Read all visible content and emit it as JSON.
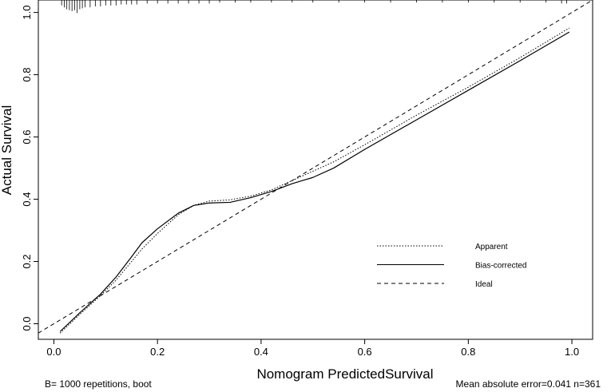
{
  "chart_data": {
    "type": "line",
    "xlabel": "Nomogram PredictedSurvival",
    "ylabel": "Actual Survival",
    "xlim": [
      -0.03,
      1.04
    ],
    "ylim": [
      -0.05,
      1.04
    ],
    "x_ticks": [
      "0.0",
      "0.2",
      "0.4",
      "0.6",
      "0.8",
      "1.0"
    ],
    "y_ticks": [
      "0.0",
      "0.2",
      "0.4",
      "0.6",
      "0.8",
      "1.0"
    ],
    "x_tick_values": [
      0,
      0.2,
      0.4,
      0.6,
      0.8,
      1.0
    ],
    "y_tick_values": [
      0,
      0.2,
      0.4,
      0.6,
      0.8,
      1.0
    ],
    "series": [
      {
        "name": "Apparent",
        "style": "dotted",
        "x": [
          0.012,
          0.05,
          0.09,
          0.12,
          0.15,
          0.17,
          0.2,
          0.24,
          0.27,
          0.3,
          0.34,
          0.38,
          0.42,
          0.46,
          0.5,
          0.54,
          0.6,
          0.7,
          0.8,
          0.9,
          0.995
        ],
        "y": [
          -0.03,
          0.03,
          0.09,
          0.14,
          0.2,
          0.24,
          0.29,
          0.35,
          0.38,
          0.394,
          0.398,
          0.41,
          0.43,
          0.46,
          0.49,
          0.52,
          0.575,
          0.67,
          0.76,
          0.855,
          0.95
        ]
      },
      {
        "name": "Bias-corrected",
        "style": "solid",
        "x": [
          0.012,
          0.05,
          0.09,
          0.12,
          0.15,
          0.17,
          0.2,
          0.24,
          0.27,
          0.3,
          0.34,
          0.38,
          0.42,
          0.46,
          0.5,
          0.54,
          0.6,
          0.7,
          0.8,
          0.9,
          0.995
        ],
        "y": [
          -0.025,
          0.035,
          0.095,
          0.15,
          0.215,
          0.26,
          0.305,
          0.355,
          0.38,
          0.388,
          0.39,
          0.405,
          0.425,
          0.45,
          0.47,
          0.5,
          0.56,
          0.655,
          0.75,
          0.845,
          0.937
        ]
      },
      {
        "name": "Ideal",
        "style": "dashed",
        "x": [
          -0.03,
          1.04
        ],
        "y": [
          -0.03,
          1.04
        ]
      }
    ],
    "legend": [
      "Apparent",
      "Bias-corrected",
      "Ideal"
    ],
    "legend_position": "right-middle",
    "rug_x": [
      0.015,
      0.02,
      0.025,
      0.03,
      0.035,
      0.04,
      0.045,
      0.05,
      0.055,
      0.06,
      0.07,
      0.08,
      0.09,
      0.1,
      0.11,
      0.12,
      0.13,
      0.14,
      0.15,
      0.16,
      0.18,
      0.2,
      0.22,
      0.24,
      0.26,
      0.28,
      0.3,
      0.32,
      0.35,
      0.38,
      0.42,
      0.46,
      0.5,
      0.55,
      0.6,
      0.65,
      0.7,
      0.75,
      0.8,
      0.85,
      0.9,
      0.95,
      0.98,
      0.99
    ],
    "rug_counts": [
      4,
      6,
      8,
      9,
      10,
      9,
      12,
      8,
      7,
      6,
      6,
      5,
      5,
      4,
      4,
      4,
      3,
      3,
      3,
      3,
      2,
      2,
      2,
      2,
      2,
      2,
      2,
      1,
      1,
      1,
      1,
      1,
      1,
      1,
      1,
      1,
      1,
      1,
      1,
      1,
      1,
      1,
      2,
      2
    ],
    "footer_left": "B= 1000 repetitions, boot",
    "footer_right": "Mean absolute error=0.041 n=361"
  }
}
